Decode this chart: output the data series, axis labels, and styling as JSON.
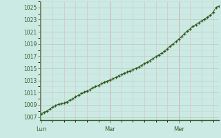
{
  "background_color": "#cceae4",
  "plot_bg_color": "#cceae4",
  "line_color": "#2d5a1b",
  "marker_color": "#2d5a1b",
  "grid_color_major_h": "#c0ccc8",
  "grid_color_major_v": "#d4aaaa",
  "grid_color_minor_h": "#c8d8d4",
  "grid_color_minor_v": "#ddb8b8",
  "axis_color": "#2d5a1b",
  "tick_label_color": "#3a6030",
  "yticks": [
    1007,
    1009,
    1011,
    1013,
    1015,
    1017,
    1019,
    1021,
    1023,
    1025
  ],
  "ylim": [
    1006.5,
    1026.0
  ],
  "xtick_labels": [
    "Lun",
    "Mar",
    "Mer"
  ],
  "xtick_positions": [
    0,
    24,
    48
  ],
  "xlim": [
    -0.5,
    62
  ],
  "x_values": [
    0,
    1,
    2,
    3,
    4,
    5,
    6,
    7,
    8,
    9,
    10,
    11,
    12,
    13,
    14,
    15,
    16,
    17,
    18,
    19,
    20,
    21,
    22,
    23,
    24,
    25,
    26,
    27,
    28,
    29,
    30,
    31,
    32,
    33,
    34,
    35,
    36,
    37,
    38,
    39,
    40,
    41,
    42,
    43,
    44,
    45,
    46,
    47,
    48,
    49,
    50,
    51,
    52,
    53,
    54,
    55,
    56,
    57,
    58,
    59,
    60,
    61,
    62
  ],
  "y_values": [
    1007.5,
    1007.8,
    1008.0,
    1008.3,
    1008.6,
    1008.9,
    1009.1,
    1009.2,
    1009.3,
    1009.5,
    1009.8,
    1010.0,
    1010.3,
    1010.6,
    1010.9,
    1011.1,
    1011.3,
    1011.5,
    1011.8,
    1012.0,
    1012.2,
    1012.5,
    1012.7,
    1012.9,
    1013.1,
    1013.3,
    1013.5,
    1013.8,
    1014.0,
    1014.2,
    1014.4,
    1014.6,
    1014.8,
    1015.0,
    1015.2,
    1015.5,
    1015.8,
    1016.0,
    1016.3,
    1016.6,
    1016.9,
    1017.2,
    1017.5,
    1017.8,
    1018.2,
    1018.6,
    1019.0,
    1019.4,
    1019.8,
    1020.2,
    1020.7,
    1021.1,
    1021.5,
    1021.9,
    1022.2,
    1022.5,
    1022.8,
    1023.1,
    1023.4,
    1023.7,
    1024.2,
    1025.0,
    1025.2
  ],
  "figsize": [
    3.2,
    2.0
  ],
  "dpi": 100
}
